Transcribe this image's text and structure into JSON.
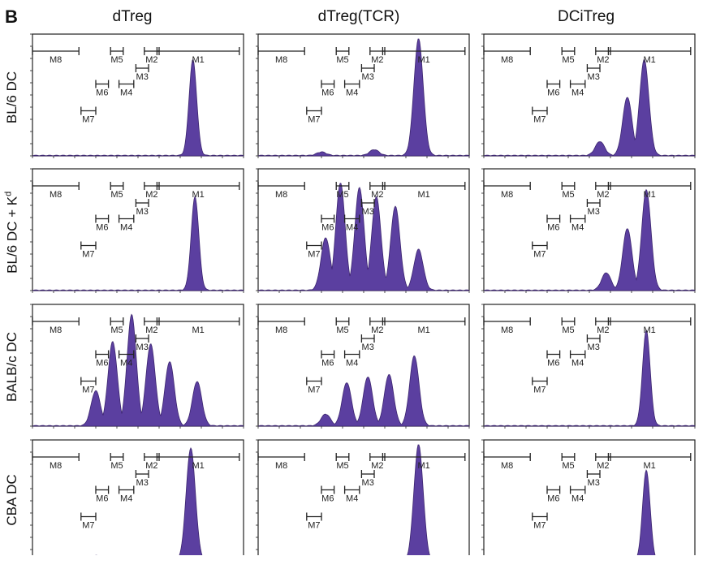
{
  "figure": {
    "panel_letter": "B",
    "columns": [
      "dTreg",
      "dTreg(TCR)",
      "DCiTreg"
    ],
    "rows": [
      "BL/6 DC",
      "BL/6 DC + K",
      "BALB/c DC",
      "CBA DC"
    ],
    "row_superscripts": [
      "",
      "d",
      "",
      ""
    ],
    "histogram_color": "#5b3fa0"
  },
  "chart_data": {
    "type": "area",
    "layout": "4x4 grid of CFSE-dilution histograms (rows x columns)",
    "gates": [
      "M1",
      "M2",
      "M3",
      "M4",
      "M5",
      "M6",
      "M7",
      "M8"
    ],
    "axes": "no tick labels",
    "panels": [
      {
        "row": "BL/6 DC",
        "column": "dTreg",
        "peaks": [
          {
            "x": 0.76,
            "h": 0.82
          }
        ]
      },
      {
        "row": "BL/6 DC",
        "column": "dTreg(TCR)",
        "peaks": [
          {
            "x": 0.76,
            "h": 1.0
          },
          {
            "x": 0.55,
            "h": 0.05
          },
          {
            "x": 0.3,
            "h": 0.03
          }
        ]
      },
      {
        "row": "BL/6 DC",
        "column": "DCiTreg",
        "peaks": [
          {
            "x": 0.76,
            "h": 0.82
          },
          {
            "x": 0.68,
            "h": 0.5
          },
          {
            "x": 0.55,
            "h": 0.12
          }
        ]
      },
      {
        "row": "BL/6 DC + K",
        "column": "dTreg",
        "peaks": [
          {
            "x": 0.77,
            "h": 0.8
          }
        ]
      },
      {
        "row": "BL/6 DC + K",
        "column": "dTreg(TCR)",
        "peaks": [
          {
            "x": 0.65,
            "h": 0.72
          },
          {
            "x": 0.56,
            "h": 0.8
          },
          {
            "x": 0.48,
            "h": 0.88
          },
          {
            "x": 0.39,
            "h": 0.92
          },
          {
            "x": 0.32,
            "h": 0.45
          },
          {
            "x": 0.76,
            "h": 0.35
          }
        ]
      },
      {
        "row": "BL/6 DC + K",
        "column": "DCiTreg",
        "peaks": [
          {
            "x": 0.77,
            "h": 0.86
          },
          {
            "x": 0.68,
            "h": 0.53
          },
          {
            "x": 0.58,
            "h": 0.15
          }
        ]
      },
      {
        "row": "BALB/c DC",
        "column": "dTreg",
        "peaks": [
          {
            "x": 0.78,
            "h": 0.38
          },
          {
            "x": 0.65,
            "h": 0.55
          },
          {
            "x": 0.56,
            "h": 0.7
          },
          {
            "x": 0.47,
            "h": 0.95
          },
          {
            "x": 0.38,
            "h": 0.72
          },
          {
            "x": 0.3,
            "h": 0.3
          }
        ]
      },
      {
        "row": "BALB/c DC",
        "column": "dTreg(TCR)",
        "peaks": [
          {
            "x": 0.74,
            "h": 0.6
          },
          {
            "x": 0.62,
            "h": 0.44
          },
          {
            "x": 0.52,
            "h": 0.42
          },
          {
            "x": 0.42,
            "h": 0.37
          },
          {
            "x": 0.32,
            "h": 0.1
          }
        ]
      },
      {
        "row": "BALB/c DC",
        "column": "DCiTreg",
        "peaks": [
          {
            "x": 0.77,
            "h": 0.82
          }
        ]
      },
      {
        "row": "CBA DC",
        "column": "dTreg",
        "peaks": [
          {
            "x": 0.75,
            "h": 0.97
          },
          {
            "x": 0.3,
            "h": 0.05
          },
          {
            "x": 0.55,
            "h": 0.04
          }
        ]
      },
      {
        "row": "CBA DC",
        "column": "dTreg(TCR)",
        "peaks": [
          {
            "x": 0.76,
            "h": 1.0
          },
          {
            "x": 0.55,
            "h": 0.04
          }
        ]
      },
      {
        "row": "CBA DC",
        "column": "DCiTreg",
        "peaks": [
          {
            "x": 0.77,
            "h": 0.78
          }
        ]
      }
    ]
  }
}
